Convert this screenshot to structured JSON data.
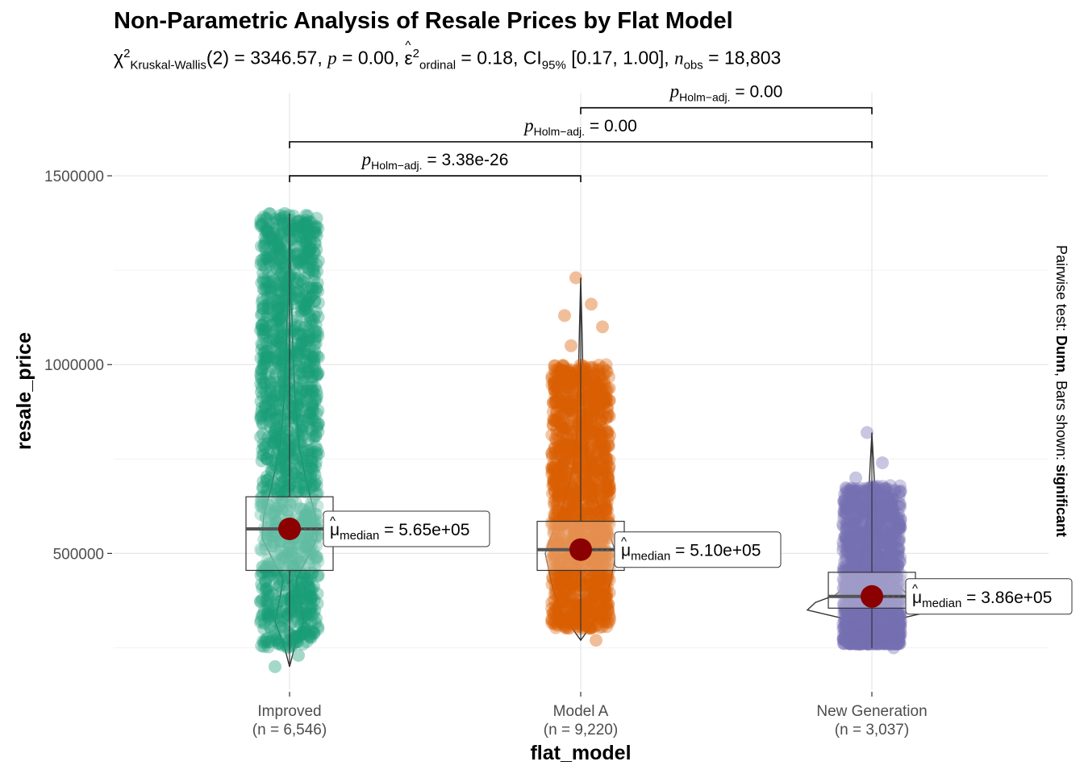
{
  "title": "Non-Parametric Analysis of Resale Prices by Flat Model",
  "subtitle": {
    "chi_symbol": "χ",
    "chi_sup": "2",
    "test_name": "Kruskal-Wallis",
    "df_text": "(2) = 3346.57, ",
    "p_symbol": "p",
    "p_text": " = 0.00, ",
    "eps_symbol": "ε",
    "eps_sup": "2",
    "eps_sub": "ordinal",
    "eps_text": " = 0.18, CI",
    "ci_sub": "95%",
    "ci_text": " [0.17, 1.00], ",
    "n_symbol": "n",
    "n_sub": "obs",
    "n_text": " = 18,803"
  },
  "caption": {
    "prefix": "Pairwise test: ",
    "test": "Dunn",
    "middle": ", Bars shown: ",
    "bars": "significant"
  },
  "chart_data": {
    "type": "violin-box-scatter",
    "xlabel": "flat_model",
    "ylabel": "resale_price",
    "ylim": [
      140000,
      1720000
    ],
    "yticks": [
      500000,
      1000000,
      1500000
    ],
    "ytick_labels": [
      "500000",
      "1000000",
      "1500000"
    ],
    "grid": true,
    "groups": [
      {
        "name": "Improved",
        "n_label": "(n = 6,546)",
        "color": "#1B9E77",
        "jitter_min": 250000,
        "jitter_max": 1400000,
        "median": 565000,
        "q1": 455000,
        "q3": 650000,
        "whisker_low": 200000,
        "whisker_high": 1400000,
        "median_label": "= 5.65e+05",
        "outliers": [
          1400000,
          1380000,
          1320000,
          1280000,
          1210000,
          1180000,
          1150000,
          230000,
          200000
        ]
      },
      {
        "name": "Model A",
        "n_label": "(n = 9,220)",
        "color": "#D95F02",
        "jitter_min": 300000,
        "jitter_max": 1000000,
        "median": 510000,
        "q1": 455000,
        "q3": 585000,
        "whisker_low": 270000,
        "whisker_high": 1230000,
        "median_label": "= 5.10e+05",
        "outliers": [
          1230000,
          1160000,
          1130000,
          1100000,
          1050000,
          270000
        ]
      },
      {
        "name": "New Generation",
        "n_label": "(n = 3,037)",
        "color": "#7570B3",
        "jitter_min": 260000,
        "jitter_max": 680000,
        "median": 386000,
        "q1": 355000,
        "q3": 450000,
        "whisker_low": 250000,
        "whisker_high": 820000,
        "median_label": "= 3.86e+05",
        "outliers": [
          820000,
          740000,
          700000,
          250000
        ]
      }
    ],
    "median_label_prefix": "μ",
    "median_label_sub": "median",
    "pairwise": [
      {
        "from": 0,
        "to": 1,
        "y": 1500000,
        "label": "= 3.38e-26"
      },
      {
        "from": 0,
        "to": 2,
        "y": 1590000,
        "label": "= 0.00"
      },
      {
        "from": 1,
        "to": 2,
        "y": 1680000,
        "label": "= 0.00"
      }
    ],
    "pairwise_p": "p",
    "pairwise_sub": "Holm−adj.",
    "mean_point_color": "#8B0000"
  }
}
